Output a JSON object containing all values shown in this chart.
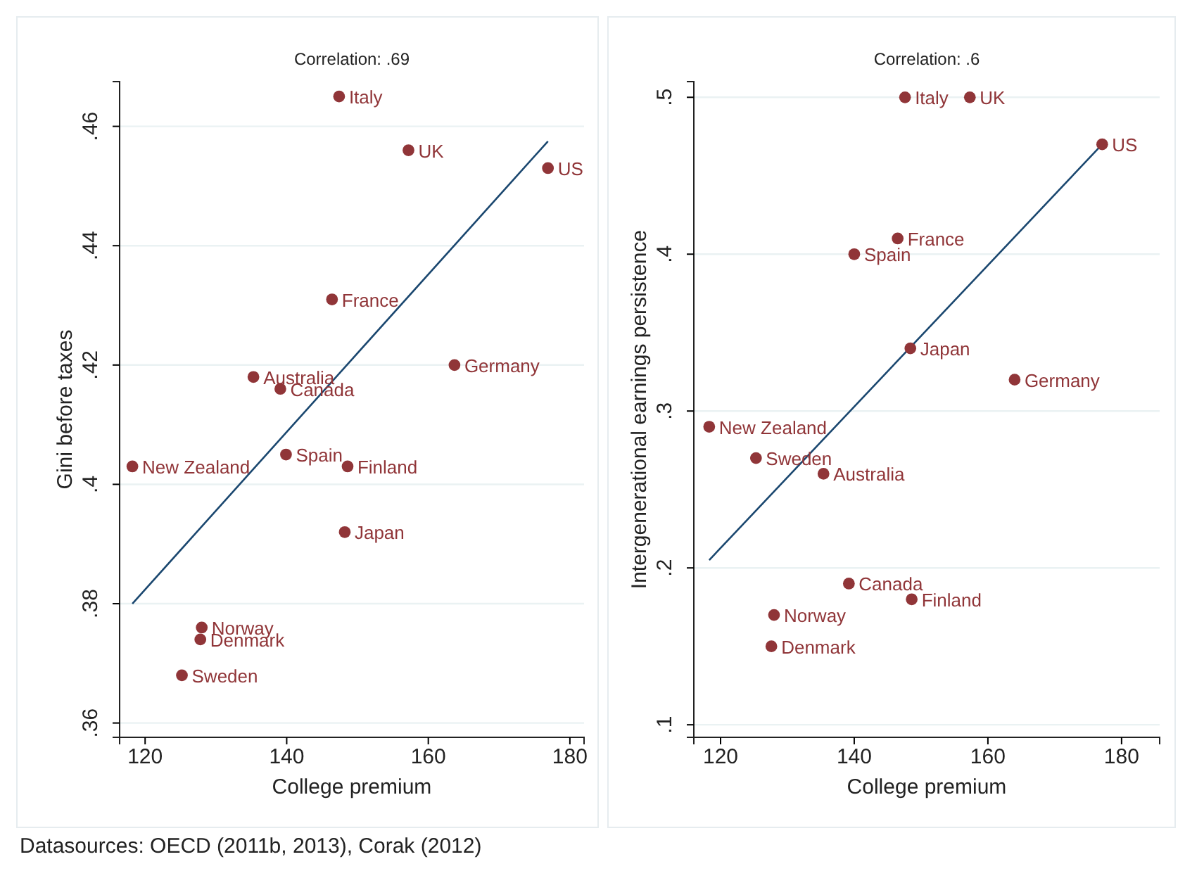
{
  "chart_data": [
    {
      "type": "scatter",
      "title": "Correlation: .69",
      "xlabel": "College premium",
      "ylabel": "Gini before taxes",
      "xlim": [
        116.4,
        182
      ],
      "ylim": [
        0.3576,
        0.4675
      ],
      "xticks": [
        120,
        140,
        160,
        180
      ],
      "yticks": [
        {
          "value": 0.36,
          "label": ".36"
        },
        {
          "value": 0.38,
          "label": ".38"
        },
        {
          "value": 0.4,
          "label": ".4"
        },
        {
          "value": 0.42,
          "label": ".42"
        },
        {
          "value": 0.44,
          "label": ".44"
        },
        {
          "value": 0.46,
          "label": ".46"
        }
      ],
      "grid": "y",
      "series": [
        {
          "marker": "circle",
          "color": "#903538",
          "x": [
            147.4,
            157.2,
            176.9,
            146.4,
            163.7,
            135.3,
            139.1,
            139.9,
            148.6,
            118.2,
            148.2,
            128.0,
            127.8,
            125.2
          ],
          "values": [
            0.465,
            0.456,
            0.453,
            0.431,
            0.42,
            0.418,
            0.416,
            0.405,
            0.403,
            0.403,
            0.392,
            0.376,
            0.374,
            0.368
          ]
        },
        {
          "type": "line",
          "color": "#1a476f",
          "x": [
            118.2,
            176.9
          ],
          "values": [
            0.38,
            0.4575
          ]
        }
      ],
      "annotations": [
        {
          "text": "Italy",
          "x": 147.4,
          "y": 0.465
        },
        {
          "text": "UK",
          "x": 157.2,
          "y": 0.456
        },
        {
          "text": "US",
          "x": 176.9,
          "y": 0.453
        },
        {
          "text": "France",
          "x": 146.4,
          "y": 0.431
        },
        {
          "text": "Germany",
          "x": 163.7,
          "y": 0.42
        },
        {
          "text": "Australia",
          "x": 135.3,
          "y": 0.418
        },
        {
          "text": "Canada",
          "x": 139.1,
          "y": 0.416
        },
        {
          "text": "Spain",
          "x": 139.9,
          "y": 0.405
        },
        {
          "text": "Finland",
          "x": 148.6,
          "y": 0.403
        },
        {
          "text": "New Zealand",
          "x": 118.2,
          "y": 0.403
        },
        {
          "text": "Japan",
          "x": 148.2,
          "y": 0.392
        },
        {
          "text": "Norway",
          "x": 128.0,
          "y": 0.376
        },
        {
          "text": "Denmark",
          "x": 127.8,
          "y": 0.374
        },
        {
          "text": "Sweden",
          "x": 125.2,
          "y": 0.368
        },
        "Datasources: OECD (2011b, 2013), Corak (2012)"
      ]
    },
    {
      "type": "scatter",
      "title": "Correlation: .6",
      "xlabel": "College premium",
      "ylabel": "Intergenerational earnings persistence",
      "xlim": [
        116,
        185.7
      ],
      "ylim": [
        0.092,
        0.51
      ],
      "xticks": [
        120,
        140,
        160,
        180
      ],
      "yticks": [
        {
          "value": 0.1,
          "label": ".1"
        },
        {
          "value": 0.2,
          "label": ".2"
        },
        {
          "value": 0.3,
          "label": ".3"
        },
        {
          "value": 0.4,
          "label": ".4"
        },
        {
          "value": 0.5,
          "label": ".5"
        }
      ],
      "grid": "y",
      "series": [
        {
          "marker": "circle",
          "color": "#903538",
          "x": [
            147.6,
            157.3,
            177.1,
            146.5,
            140,
            148.4,
            164,
            118.3,
            125.3,
            135.4,
            139.2,
            148.6,
            128,
            127.6
          ],
          "values": [
            0.5,
            0.5,
            0.47,
            0.41,
            0.4,
            0.34,
            0.32,
            0.29,
            0.27,
            0.26,
            0.19,
            0.18,
            0.17,
            0.15
          ]
        },
        {
          "type": "line",
          "color": "#1a476f",
          "x": [
            118.3,
            177.1
          ],
          "values": [
            0.205,
            0.47
          ]
        }
      ],
      "annotations": [
        {
          "text": "Italy",
          "x": 147.6,
          "y": 0.5
        },
        {
          "text": "UK",
          "x": 157.3,
          "y": 0.5
        },
        {
          "text": "US",
          "x": 177.1,
          "y": 0.47
        },
        {
          "text": "France",
          "x": 146.5,
          "y": 0.41
        },
        {
          "text": "Spain",
          "x": 140,
          "y": 0.4
        },
        {
          "text": "Japan",
          "x": 148.4,
          "y": 0.34
        },
        {
          "text": "Germany",
          "x": 164,
          "y": 0.32
        },
        {
          "text": "New Zealand",
          "x": 118.3,
          "y": 0.29
        },
        {
          "text": "Sweden",
          "x": 125.3,
          "y": 0.27
        },
        {
          "text": "Australia",
          "x": 135.4,
          "y": 0.26
        },
        {
          "text": "Canada",
          "x": 139.2,
          "y": 0.19
        },
        {
          "text": "Finland",
          "x": 148.6,
          "y": 0.18
        },
        {
          "text": "Norway",
          "x": 128,
          "y": 0.17
        },
        {
          "text": "Denmark",
          "x": 127.6,
          "y": 0.15
        }
      ]
    }
  ]
}
